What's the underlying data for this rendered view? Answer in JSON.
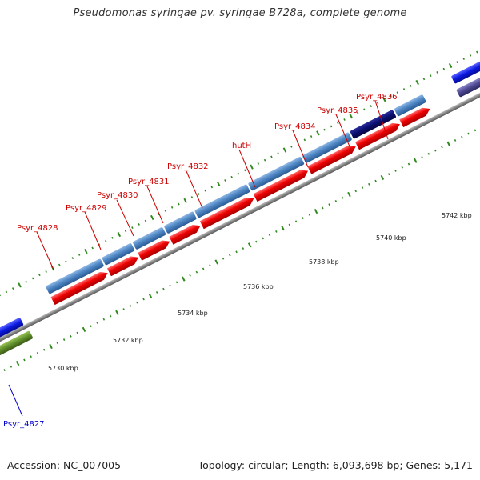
{
  "title": "Pseudomonas syringae pv. syringae B728a, complete genome",
  "footer": {
    "accession": "Accession: NC_007005",
    "summary": "Topology: circular; Length: 6,093,698 bp; Genes: 5,171"
  },
  "colors": {
    "gene_cds": "#4f87c4",
    "gene_highlight": "#0b0d6e",
    "cds_forward": "#ee0000",
    "backbone": "#888888",
    "tick": "#2f8a1e",
    "label_red": "#cc0000",
    "label_blue": "#0000cc",
    "reverse_blue": "#0a17e0",
    "reverse_purple": "#4c4690",
    "reverse_olive": "#5f8f2a"
  },
  "genes": [
    {
      "name": "Psyr_4828",
      "label": "Psyr_4828"
    },
    {
      "name": "Psyr_4829",
      "label": "Psyr_4829"
    },
    {
      "name": "Psyr_4830",
      "label": "Psyr_4830"
    },
    {
      "name": "Psyr_4831",
      "label": "Psyr_4831"
    },
    {
      "name": "Psyr_4832",
      "label": "Psyr_4832"
    },
    {
      "name": "hutH",
      "label": "hutH"
    },
    {
      "name": "Psyr_4834",
      "label": "Psyr_4834"
    },
    {
      "name": "Psyr_4835",
      "label": "Psyr_4835"
    },
    {
      "name": "Psyr_4836",
      "label": "Psyr_4836"
    },
    {
      "name": "Psyr_4827",
      "label": "Psyr_4827"
    }
  ],
  "scale_labels": [
    "5730 kbp",
    "5732 kbp",
    "5734 kbp",
    "5736 kbp",
    "5738 kbp",
    "5740 kbp",
    "5742 kbp"
  ]
}
